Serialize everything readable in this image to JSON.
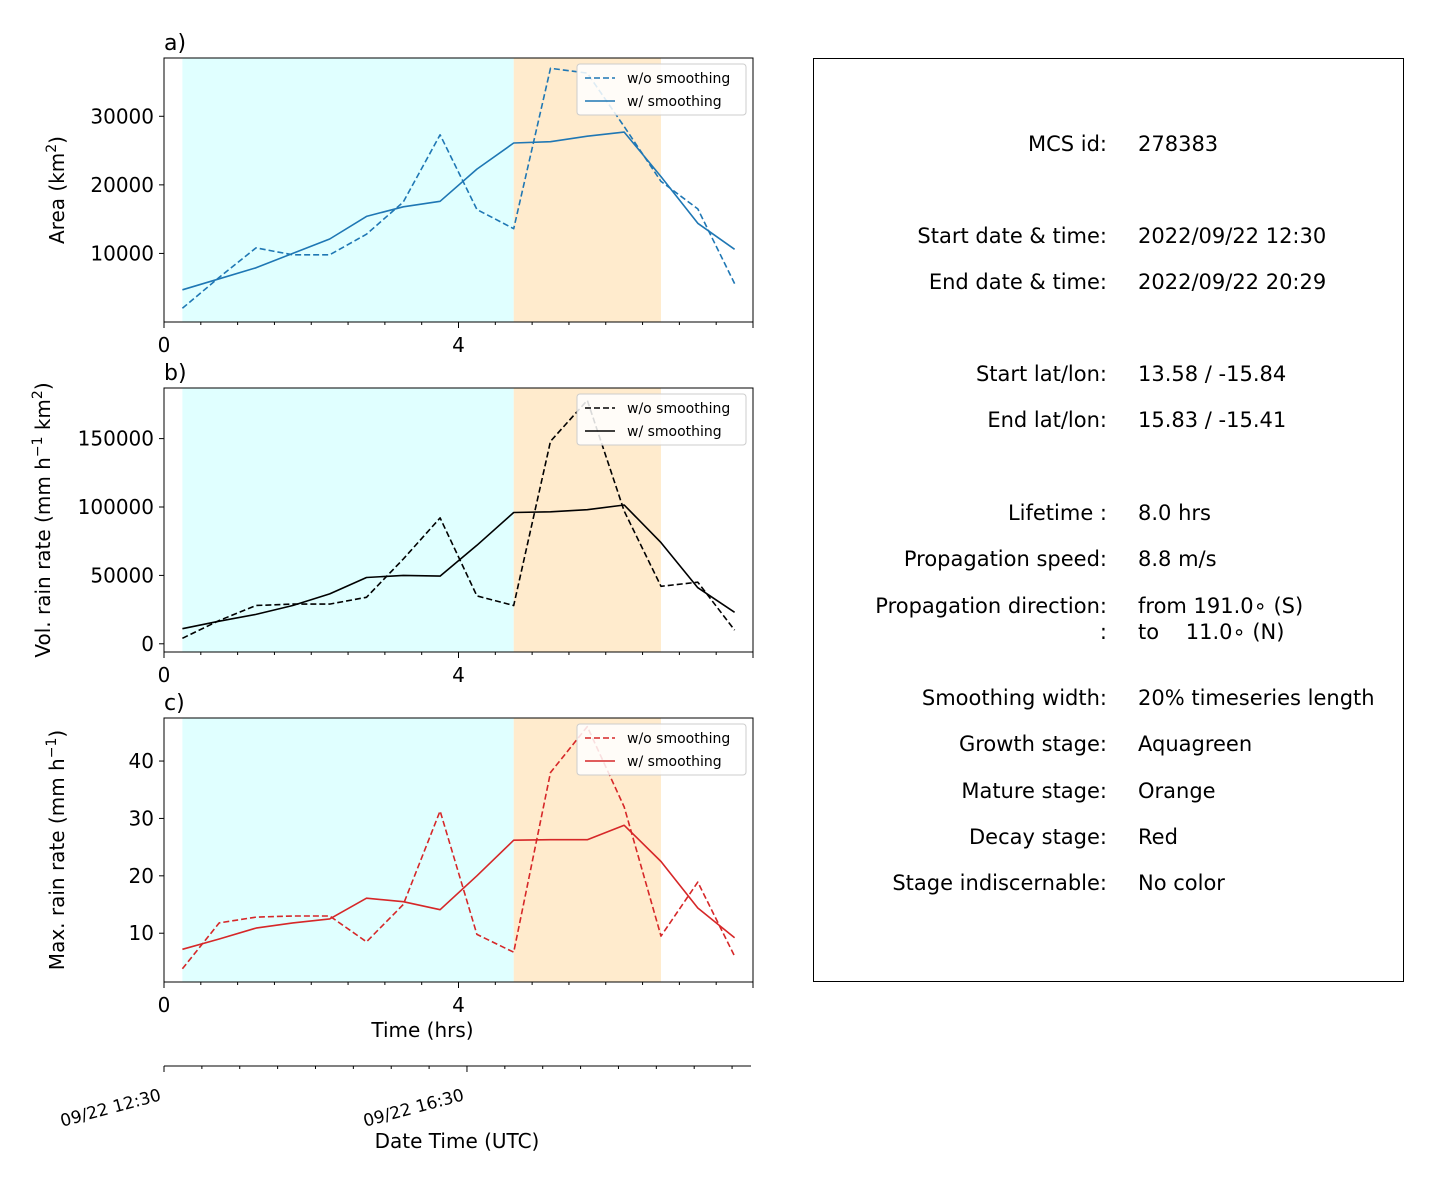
{
  "chart_data": [
    {
      "type": "line",
      "panel_label": "a)",
      "ylabel_main": "Area  (km",
      "ylabel_sup": "2",
      "ylabel_tail": ")",
      "xlim": [
        0,
        8
      ],
      "ylim": [
        0,
        38500
      ],
      "yticks": [
        10000,
        20000,
        30000
      ],
      "ytick_labels": [
        "10000",
        "20000",
        "30000"
      ],
      "xtick_labels": [
        "0",
        "4"
      ],
      "color": "#1f77b4",
      "series": [
        {
          "name": "w/o smoothing",
          "style": "dashed",
          "x": [
            0.25,
            0.75,
            1.25,
            1.75,
            2.25,
            2.75,
            3.25,
            3.75,
            4.25,
            4.75,
            5.25,
            5.75,
            6.25,
            6.75,
            7.25,
            7.75
          ],
          "values": [
            2000,
            6500,
            10800,
            9800,
            9800,
            12800,
            17500,
            27300,
            16400,
            13600,
            37000,
            36300,
            28500,
            20500,
            16500,
            5600
          ]
        },
        {
          "name": "w/ smoothing",
          "style": "solid",
          "x": [
            0.25,
            0.75,
            1.25,
            1.75,
            2.25,
            2.75,
            3.25,
            3.75,
            4.25,
            4.75,
            5.25,
            5.75,
            6.25,
            6.75,
            7.25,
            7.75
          ],
          "values": [
            4700,
            6300,
            7900,
            10000,
            12100,
            15400,
            16800,
            17600,
            22300,
            26100,
            26300,
            27100,
            27700,
            21200,
            14400,
            10600
          ]
        }
      ]
    },
    {
      "type": "line",
      "panel_label": "b)",
      "ylabel_main": "Vol. rain rate (mm h",
      "ylabel_sup": "−1",
      "ylabel_mid": " km",
      "ylabel_sup2": "2",
      "ylabel_tail": ")",
      "xlim": [
        0,
        8
      ],
      "ylim": [
        -6000,
        187000
      ],
      "yticks": [
        0,
        50000,
        100000,
        150000
      ],
      "ytick_labels": [
        "0",
        "50000",
        "100000",
        "150000"
      ],
      "xtick_labels": [
        "0",
        "4"
      ],
      "color": "#000000",
      "series": [
        {
          "name": "w/o smoothing",
          "style": "dashed",
          "x": [
            0.25,
            0.75,
            1.25,
            1.75,
            2.25,
            2.75,
            3.25,
            3.75,
            4.25,
            4.75,
            5.25,
            5.75,
            6.25,
            6.75,
            7.25,
            7.75
          ],
          "values": [
            4000,
            17000,
            28000,
            29000,
            29000,
            34000,
            62000,
            92000,
            35000,
            28000,
            148000,
            178000,
            97000,
            42000,
            45000,
            10000
          ]
        },
        {
          "name": "w/ smoothing",
          "style": "solid",
          "x": [
            0.25,
            0.75,
            1.25,
            1.75,
            2.25,
            2.75,
            3.25,
            3.75,
            4.25,
            4.75,
            5.25,
            5.75,
            6.25,
            6.75,
            7.25,
            7.75
          ],
          "values": [
            11000,
            16500,
            21500,
            28000,
            36500,
            48500,
            50000,
            49500,
            72000,
            96000,
            96500,
            98000,
            101500,
            74000,
            41000,
            23000
          ]
        }
      ]
    },
    {
      "type": "line",
      "panel_label": "c)",
      "ylabel_main": "Max. rain rate  (mm h",
      "ylabel_sup": "−1",
      "ylabel_tail": ")",
      "xlabel": "Time (hrs)",
      "xlim": [
        0,
        8
      ],
      "ylim": [
        1.5,
        47.5
      ],
      "yticks": [
        10,
        20,
        30,
        40
      ],
      "ytick_labels": [
        "10",
        "20",
        "30",
        "40"
      ],
      "xtick_labels": [
        "0",
        "4"
      ],
      "color": "#d62728",
      "series": [
        {
          "name": "w/o smoothing",
          "style": "dashed",
          "x": [
            0.25,
            0.75,
            1.25,
            1.75,
            2.25,
            2.75,
            3.25,
            3.75,
            4.25,
            4.75,
            5.25,
            5.75,
            6.25,
            6.75,
            7.25,
            7.75
          ],
          "values": [
            3.8,
            11.8,
            12.8,
            13.0,
            13.0,
            8.5,
            15.0,
            31.3,
            9.8,
            6.7,
            38.0,
            46.0,
            32.0,
            9.5,
            18.9,
            6.0
          ]
        },
        {
          "name": "w/ smoothing",
          "style": "solid",
          "x": [
            0.25,
            0.75,
            1.25,
            1.75,
            2.25,
            2.75,
            3.25,
            3.75,
            4.25,
            4.75,
            5.25,
            5.75,
            6.25,
            6.75,
            7.25,
            7.75
          ],
          "values": [
            7.2,
            9.0,
            10.9,
            11.8,
            12.5,
            16.1,
            15.5,
            14.1,
            20.0,
            26.2,
            26.3,
            26.3,
            28.8,
            22.5,
            14.4,
            9.2
          ]
        }
      ]
    }
  ],
  "stages": {
    "growth": {
      "x_start": 0.25,
      "x_end": 4.75,
      "color": "#e0ffff"
    },
    "mature": {
      "x_start": 4.75,
      "x_end": 6.75,
      "color": "#ffebcd"
    }
  },
  "datetime_axis": {
    "xlabel": "Date Time (UTC)",
    "tick_labels": [
      "09/22 12:30",
      "09/22 16:30"
    ]
  },
  "info": {
    "rows": [
      {
        "label": "MCS id:",
        "value": "278383"
      },
      {
        "label": "Start date & time:",
        "value": "2022/09/22 12:30"
      },
      {
        "label": "End date & time:",
        "value": "2022/09/22 20:29"
      },
      {
        "label": "Start lat/lon:",
        "value": "13.58 / -15.84"
      },
      {
        "label": "End lat/lon:",
        "value": "15.83 / -15.41"
      },
      {
        "label": "Lifetime :",
        "value": "8.0 hrs"
      },
      {
        "label": "Propagation speed:",
        "value": "8.8 m/s"
      },
      {
        "label": "Propagation direction:",
        "value": "from 191.0∘ (S)"
      },
      {
        "label": ":",
        "value": "to    11.0∘ (N)"
      },
      {
        "label": "Smoothing width:",
        "value": "20% timeseries length"
      },
      {
        "label": "Growth stage:",
        "value": "Aquagreen"
      },
      {
        "label": "Mature stage:",
        "value": "Orange"
      },
      {
        "label": "Decay stage:",
        "value": "Red"
      },
      {
        "label": "Stage indiscernable:",
        "value": "No color"
      }
    ]
  }
}
